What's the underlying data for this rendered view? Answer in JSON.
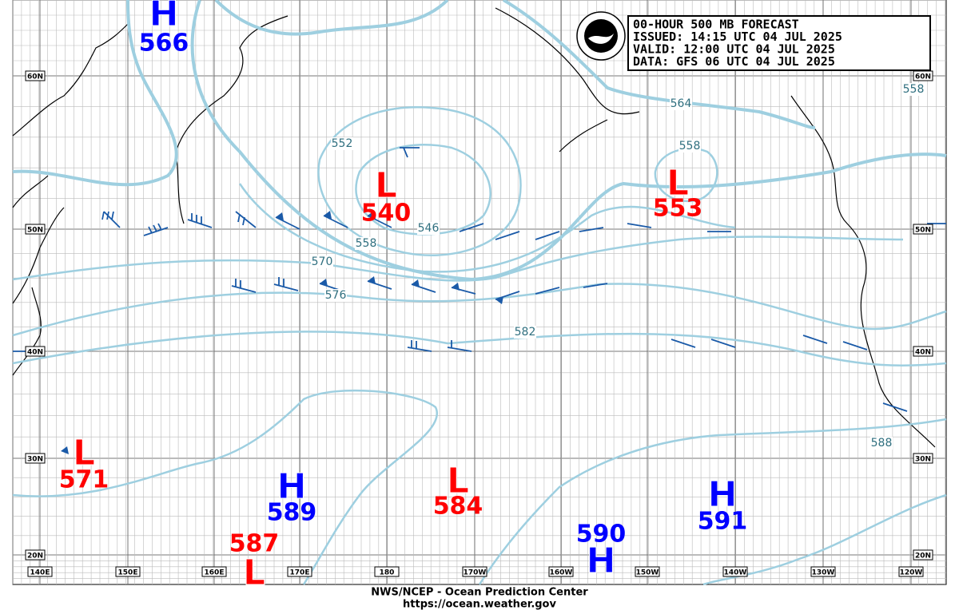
{
  "header": {
    "lines": [
      "00-HOUR 500 MB FORECAST",
      "ISSUED: 14:15 UTC 04 JUL 2025",
      "VALID:  12:00 UTC 04 JUL 2025",
      "DATA:  GFS 06 UTC 04 JUL 2025"
    ]
  },
  "centers": [
    {
      "type": "H",
      "value": 566
    },
    {
      "type": "L",
      "value": 540
    },
    {
      "type": "L",
      "value": 553
    },
    {
      "type": "L",
      "value": 571
    },
    {
      "type": "H",
      "value": 589
    },
    {
      "type": "L",
      "value": 584
    },
    {
      "type": "L",
      "value": 587
    },
    {
      "type": "H",
      "value": 590
    },
    {
      "type": "H",
      "value": 591
    }
  ],
  "contour_labels": [
    552,
    546,
    558,
    570,
    576,
    582,
    588,
    564,
    558,
    558
  ],
  "lat_labels": [
    "60N",
    "50N",
    "40N",
    "30N",
    "20N"
  ],
  "lon_labels": [
    "140E",
    "150E",
    "160E",
    "170E",
    "180",
    "170W",
    "160W",
    "150W",
    "140W",
    "130W",
    "120W"
  ],
  "footer": [
    "NWS/NCEP - Ocean Prediction Center",
    "https://ocean.weather.gov"
  ]
}
